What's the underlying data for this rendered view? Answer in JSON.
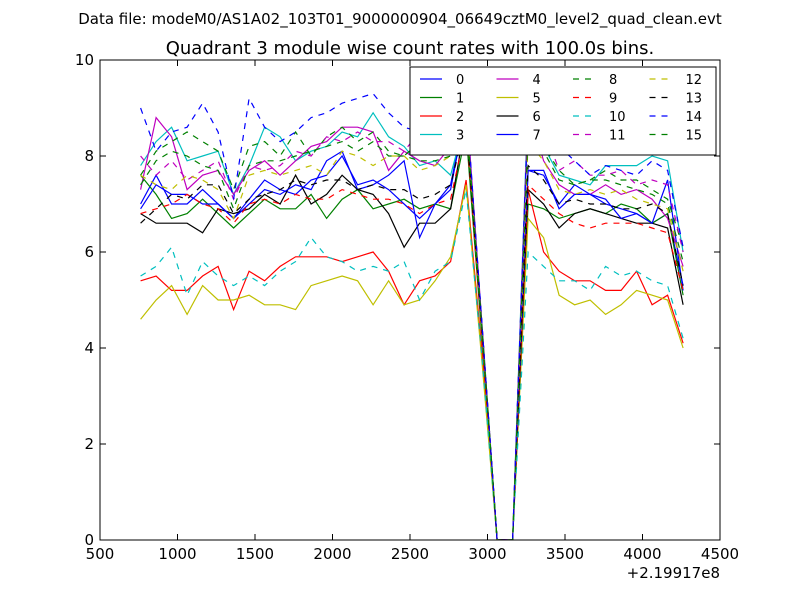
{
  "header": {
    "data_file": "Data file: modeM0/AS1A02_103T01_9000000904_06649cztM0_level2_quad_clean.evt"
  },
  "chart_data": {
    "type": "line",
    "title": "Quadrant 3 module wise count rates with 100.0s bins.",
    "xlabel": "",
    "ylabel": "",
    "xlim": [
      500,
      4500
    ],
    "ylim": [
      0,
      10
    ],
    "x_ticks": [
      500,
      1000,
      1500,
      2000,
      2500,
      3000,
      3500,
      4000,
      4500
    ],
    "x_tick_labels": [
      "500",
      "1000",
      "1500",
      "2000",
      "2500",
      "3000",
      "3500",
      "4000",
      "4500"
    ],
    "y_ticks": [
      0,
      2,
      4,
      6,
      8,
      10
    ],
    "y_tick_labels": [
      "0",
      "2",
      "4",
      "6",
      "8",
      "10"
    ],
    "x_offset_label": "+2.19917e8",
    "legend_position": "top-right",
    "legend_columns": 4,
    "x": [
      762,
      862,
      962,
      1062,
      1162,
      1262,
      1362,
      1462,
      1562,
      1662,
      1762,
      1862,
      1962,
      2062,
      2162,
      2262,
      2362,
      2462,
      2562,
      2662,
      2762,
      2862,
      2962,
      3062,
      3162,
      3262,
      3362,
      3462,
      3562,
      3662,
      3762,
      3862,
      3962,
      4062,
      4162,
      4262
    ],
    "series": [
      {
        "name": "0",
        "color": "#0000ff",
        "dash": "solid",
        "values": [
          7.0,
          7.6,
          7.0,
          7.0,
          7.3,
          7.0,
          6.7,
          7.1,
          7.5,
          7.3,
          7.2,
          7.5,
          7.6,
          8.0,
          7.4,
          7.5,
          7.3,
          7.0,
          6.7,
          7.0,
          7.4,
          9.0,
          4.5,
          0.0,
          0.0,
          7.7,
          7.6,
          7.0,
          7.4,
          7.2,
          7.0,
          6.9,
          6.8,
          6.6,
          6.8,
          5.3
        ]
      },
      {
        "name": "1",
        "color": "#008000",
        "dash": "solid",
        "values": [
          7.6,
          7.2,
          6.7,
          6.8,
          7.1,
          6.8,
          6.5,
          6.8,
          7.1,
          6.9,
          6.9,
          7.2,
          6.7,
          7.1,
          7.3,
          6.9,
          7.0,
          7.1,
          6.9,
          7.0,
          6.9,
          8.5,
          4.3,
          0.0,
          0.0,
          7.0,
          6.9,
          6.7,
          6.8,
          6.9,
          6.8,
          7.0,
          6.9,
          6.6,
          6.8,
          5.1
        ]
      },
      {
        "name": "2",
        "color": "#ff0000",
        "dash": "solid",
        "values": [
          5.4,
          5.5,
          5.2,
          5.2,
          5.5,
          5.7,
          4.8,
          5.6,
          5.4,
          5.7,
          5.9,
          5.9,
          5.9,
          5.8,
          5.9,
          6.0,
          5.6,
          4.9,
          5.4,
          5.5,
          5.8,
          7.5,
          4.0,
          0.0,
          0.0,
          7.3,
          6.0,
          5.6,
          5.4,
          5.4,
          5.2,
          5.2,
          5.6,
          4.9,
          5.1,
          4.1
        ]
      },
      {
        "name": "3",
        "color": "#00bfbf",
        "dash": "solid",
        "values": [
          7.8,
          8.3,
          8.6,
          7.9,
          8.0,
          8.1,
          7.2,
          7.8,
          8.6,
          8.4,
          7.9,
          8.1,
          8.2,
          8.5,
          8.4,
          8.9,
          8.4,
          8.2,
          7.8,
          7.9,
          7.6,
          8.8,
          4.6,
          0.0,
          0.0,
          9.2,
          8.2,
          7.6,
          7.5,
          7.4,
          7.8,
          7.8,
          7.8,
          8.0,
          7.9,
          6.0
        ]
      },
      {
        "name": "4",
        "color": "#bf00bf",
        "dash": "solid",
        "values": [
          7.3,
          8.8,
          8.4,
          7.3,
          7.6,
          7.7,
          7.2,
          7.7,
          7.9,
          7.6,
          7.9,
          8.2,
          8.3,
          8.6,
          8.6,
          8.5,
          7.7,
          8.1,
          7.9,
          7.8,
          8.2,
          9.2,
          4.6,
          0.0,
          0.0,
          9.0,
          7.9,
          7.4,
          7.2,
          7.2,
          7.4,
          7.2,
          7.3,
          7.1,
          6.7,
          5.7
        ]
      },
      {
        "name": "5",
        "color": "#bfbf00",
        "dash": "solid",
        "values": [
          4.6,
          5.0,
          5.3,
          4.7,
          5.3,
          5.0,
          5.0,
          5.1,
          4.9,
          4.9,
          4.8,
          5.3,
          5.4,
          5.5,
          5.4,
          4.9,
          5.4,
          4.9,
          5.0,
          5.4,
          5.9,
          7.4,
          3.8,
          0.0,
          0.0,
          6.7,
          6.3,
          5.1,
          4.9,
          5.0,
          4.7,
          4.9,
          5.2,
          5.1,
          5.0,
          4.0
        ]
      },
      {
        "name": "6",
        "color": "#000000",
        "dash": "solid",
        "values": [
          6.8,
          6.6,
          6.6,
          6.6,
          6.4,
          6.9,
          6.8,
          6.9,
          7.2,
          7.0,
          7.6,
          7.0,
          7.2,
          7.6,
          7.3,
          7.2,
          6.8,
          6.1,
          6.6,
          6.6,
          6.9,
          8.8,
          4.5,
          0.0,
          0.0,
          7.3,
          7.0,
          6.5,
          6.8,
          6.9,
          6.8,
          6.7,
          6.6,
          6.6,
          6.5,
          4.9
        ]
      },
      {
        "name": "7",
        "color": "#0000ff",
        "dash": "solid",
        "values": [
          6.9,
          7.4,
          7.2,
          7.2,
          7.0,
          7.0,
          6.7,
          7.0,
          7.3,
          7.2,
          7.4,
          7.3,
          7.9,
          8.1,
          7.3,
          7.4,
          7.6,
          7.9,
          6.3,
          7.0,
          7.3,
          9.0,
          4.5,
          0.0,
          0.0,
          7.7,
          7.7,
          6.9,
          7.2,
          7.2,
          7.1,
          6.7,
          6.8,
          6.6,
          7.5,
          5.2
        ]
      },
      {
        "name": "8",
        "color": "#008000",
        "dash": "dashed",
        "values": [
          7.6,
          8.1,
          8.3,
          8.5,
          8.3,
          8.1,
          7.3,
          8.2,
          8.3,
          8.0,
          8.5,
          8.0,
          8.4,
          8.6,
          8.3,
          8.5,
          8.1,
          8.0,
          8.3,
          8.2,
          8.3,
          9.0,
          4.6,
          0.0,
          0.0,
          8.9,
          8.2,
          7.7,
          7.4,
          7.5,
          7.7,
          7.5,
          7.5,
          7.3,
          7.1,
          6.1
        ]
      },
      {
        "name": "9",
        "color": "#ff0000",
        "dash": "dashed",
        "values": [
          6.8,
          6.9,
          7.0,
          7.2,
          7.0,
          6.9,
          6.6,
          7.0,
          7.1,
          7.0,
          7.2,
          7.1,
          7.1,
          7.3,
          7.2,
          7.1,
          7.1,
          7.0,
          6.8,
          7.0,
          7.1,
          8.6,
          4.4,
          0.0,
          0.0,
          7.4,
          7.1,
          6.8,
          6.6,
          6.5,
          6.6,
          6.6,
          6.6,
          6.5,
          6.4,
          5.2
        ]
      },
      {
        "name": "10",
        "color": "#00bfbf",
        "dash": "dashed",
        "values": [
          5.5,
          5.7,
          6.1,
          5.1,
          5.8,
          5.5,
          5.3,
          5.5,
          5.3,
          5.6,
          5.8,
          6.3,
          5.9,
          5.8,
          5.6,
          5.7,
          5.6,
          5.8,
          5.0,
          5.6,
          5.8,
          7.3,
          3.9,
          0.0,
          0.0,
          6.0,
          5.7,
          5.4,
          5.4,
          5.2,
          5.7,
          5.5,
          5.6,
          5.4,
          5.3,
          4.2
        ]
      },
      {
        "name": "11",
        "color": "#bf00bf",
        "dash": "dashed",
        "values": [
          8.0,
          7.6,
          7.9,
          7.5,
          7.7,
          7.9,
          7.1,
          7.8,
          7.7,
          7.8,
          8.1,
          8.0,
          8.4,
          8.3,
          8.5,
          8.3,
          8.3,
          8.1,
          8.5,
          8.6,
          8.5,
          9.1,
          4.6,
          0.0,
          0.0,
          8.9,
          8.6,
          7.7,
          7.9,
          7.6,
          7.6,
          7.7,
          7.4,
          7.5,
          7.4,
          6.0
        ]
      },
      {
        "name": "12",
        "color": "#bfbf00",
        "dash": "dashed",
        "values": [
          7.6,
          7.4,
          7.3,
          7.6,
          7.5,
          7.3,
          6.7,
          7.6,
          7.7,
          7.6,
          7.7,
          7.8,
          7.6,
          8.1,
          8.0,
          7.8,
          8.0,
          8.0,
          7.7,
          7.8,
          8.0,
          8.9,
          4.5,
          0.0,
          0.0,
          8.3,
          7.9,
          7.3,
          7.2,
          7.3,
          7.2,
          7.3,
          7.1,
          7.0,
          6.9,
          5.6
        ]
      },
      {
        "name": "13",
        "color": "#000000",
        "dash": "dashed",
        "values": [
          6.6,
          6.9,
          7.2,
          7.1,
          7.4,
          7.4,
          6.8,
          7.1,
          7.2,
          7.3,
          7.5,
          7.4,
          7.5,
          7.5,
          7.3,
          7.4,
          7.3,
          7.3,
          7.1,
          7.2,
          7.4,
          8.7,
          4.5,
          0.0,
          0.0,
          7.8,
          7.5,
          7.0,
          7.1,
          7.0,
          7.0,
          6.9,
          6.9,
          7.0,
          6.8,
          5.3
        ]
      },
      {
        "name": "14",
        "color": "#0000ff",
        "dash": "dashed",
        "values": [
          9.0,
          8.1,
          8.5,
          8.6,
          9.1,
          8.5,
          7.1,
          9.2,
          8.6,
          8.3,
          8.5,
          8.8,
          8.9,
          9.1,
          9.2,
          9.3,
          8.9,
          8.6,
          8.5,
          8.4,
          8.6,
          9.2,
          4.6,
          0.0,
          0.0,
          9.0,
          8.7,
          8.2,
          7.9,
          7.6,
          7.8,
          7.7,
          7.6,
          7.9,
          7.7,
          6.1
        ]
      },
      {
        "name": "15",
        "color": "#008000",
        "dash": "dashed",
        "values": [
          7.4,
          7.9,
          8.1,
          8.0,
          7.8,
          7.7,
          6.9,
          7.8,
          7.9,
          7.9,
          8.0,
          8.1,
          8.2,
          8.3,
          8.1,
          8.3,
          8.0,
          8.0,
          7.9,
          7.9,
          8.0,
          8.9,
          4.5,
          0.0,
          0.0,
          8.5,
          8.1,
          7.5,
          7.4,
          7.5,
          7.5,
          7.4,
          7.3,
          7.2,
          7.0,
          5.8
        ]
      }
    ]
  }
}
